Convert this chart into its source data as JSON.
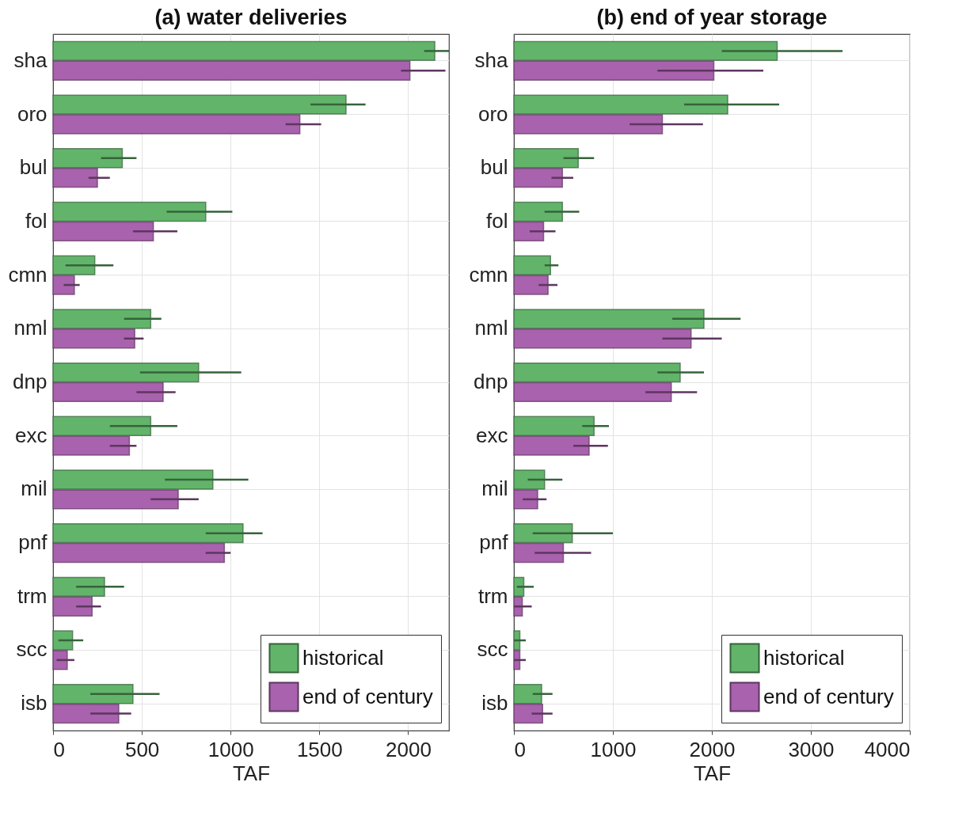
{
  "chart_data": [
    {
      "type": "bar",
      "orientation": "horizontal",
      "title": "(a) water deliveries",
      "xlabel": "TAF",
      "categories": [
        "sha",
        "oro",
        "bul",
        "fol",
        "cmn",
        "nml",
        "dnp",
        "exc",
        "mil",
        "pnf",
        "trm",
        "scc",
        "isb"
      ],
      "series": [
        {
          "name": "historical",
          "color": "#62b46a",
          "values": [
            2150,
            1650,
            390,
            860,
            235,
            550,
            820,
            550,
            900,
            1070,
            290,
            110,
            450
          ],
          "errors": [
            [
              2090,
              2230
            ],
            [
              1450,
              1760
            ],
            [
              270,
              470
            ],
            [
              640,
              1010
            ],
            [
              70,
              340
            ],
            [
              400,
              610
            ],
            [
              490,
              1060
            ],
            [
              320,
              700
            ],
            [
              630,
              1100
            ],
            [
              860,
              1180
            ],
            [
              130,
              400
            ],
            [
              30,
              170
            ],
            [
              210,
              600
            ]
          ]
        },
        {
          "name": "end of century",
          "color": "#a962ad",
          "values": [
            2010,
            1390,
            250,
            565,
            120,
            460,
            620,
            430,
            705,
            965,
            220,
            80,
            370
          ],
          "errors": [
            [
              1960,
              2210
            ],
            [
              1310,
              1510
            ],
            [
              200,
              320
            ],
            [
              450,
              700
            ],
            [
              60,
              150
            ],
            [
              400,
              510
            ],
            [
              470,
              690
            ],
            [
              320,
              470
            ],
            [
              550,
              820
            ],
            [
              860,
              1000
            ],
            [
              130,
              270
            ],
            [
              20,
              120
            ],
            [
              210,
              440
            ]
          ]
        }
      ],
      "xlim": [
        0,
        2230
      ],
      "xticks": [
        0,
        500,
        1000,
        1500,
        2000
      ],
      "grid": true,
      "legend": "bottom right"
    },
    {
      "type": "bar",
      "orientation": "horizontal",
      "title": "(b) end of year storage",
      "xlabel": "TAF",
      "categories": [
        "sha",
        "oro",
        "bul",
        "fol",
        "cmn",
        "nml",
        "dnp",
        "exc",
        "mil",
        "pnf",
        "trm",
        "scc",
        "isb"
      ],
      "series": [
        {
          "name": "historical",
          "color": "#62b46a",
          "values": [
            2660,
            2160,
            650,
            490,
            370,
            1920,
            1680,
            810,
            310,
            590,
            100,
            60,
            280
          ],
          "errors": [
            [
              2100,
              3320
            ],
            [
              1720,
              2680
            ],
            [
              500,
              810
            ],
            [
              310,
              660
            ],
            [
              310,
              450
            ],
            [
              1600,
              2290
            ],
            [
              1450,
              1920
            ],
            [
              690,
              960
            ],
            [
              140,
              490
            ],
            [
              190,
              1000
            ],
            [
              30,
              200
            ],
            [
              0,
              120
            ],
            [
              190,
              390
            ]
          ]
        },
        {
          "name": "end of century",
          "color": "#a962ad",
          "values": [
            2020,
            1500,
            490,
            300,
            345,
            1790,
            1590,
            760,
            240,
            500,
            85,
            60,
            290
          ],
          "errors": [
            [
              1450,
              2520
            ],
            [
              1170,
              1910
            ],
            [
              380,
              600
            ],
            [
              160,
              420
            ],
            [
              250,
              440
            ],
            [
              1500,
              2100
            ],
            [
              1330,
              1850
            ],
            [
              600,
              950
            ],
            [
              90,
              330
            ],
            [
              210,
              780
            ],
            [
              0,
              180
            ],
            [
              0,
              120
            ],
            [
              180,
              390
            ]
          ]
        }
      ],
      "xlim": [
        0,
        4000
      ],
      "xticks": [
        0,
        1000,
        2000,
        3000,
        4000
      ],
      "grid": true,
      "legend": "bottom right"
    }
  ]
}
